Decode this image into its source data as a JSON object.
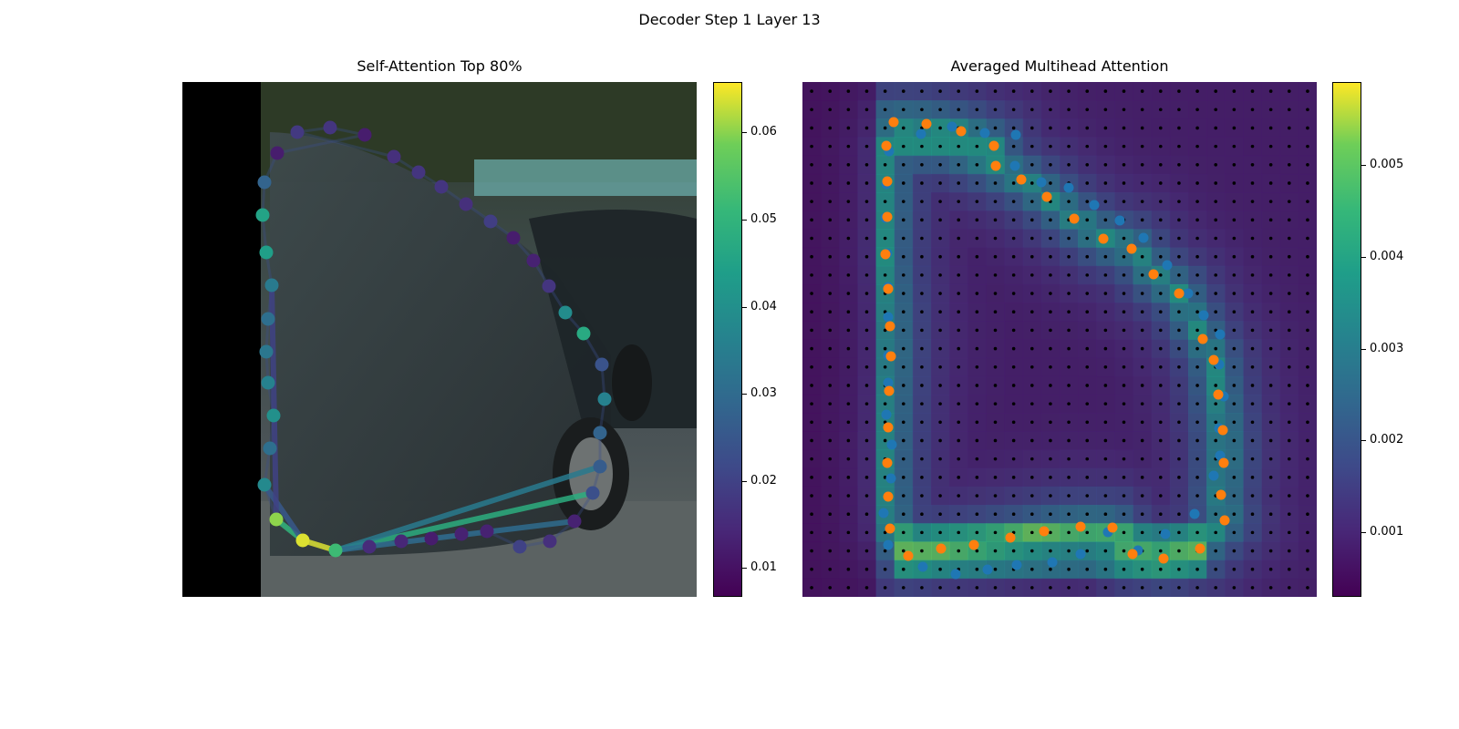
{
  "figure": {
    "suptitle": "Decoder Step 1 Layer 13"
  },
  "chart_data": [
    {
      "type": "scatter",
      "title": "Self-Attention Top 80%",
      "description_kind": "polygon vertices overlaid on camera image, colored by attention weight",
      "colormap": "viridis",
      "colorbar": {
        "min": 0.0068,
        "max": 0.0657,
        "ticks": [
          0.01,
          0.02,
          0.03,
          0.04,
          0.05,
          0.06
        ],
        "tick_labels": [
          "0.01",
          "0.02",
          "0.03",
          "0.04",
          "0.05",
          "0.06"
        ]
      },
      "xlim": [
        0,
        564
      ],
      "ylim": [
        0,
        565
      ],
      "points": [
        {
          "x": 126,
          "y": 55,
          "w": 0.018
        },
        {
          "x": 162,
          "y": 50,
          "w": 0.017
        },
        {
          "x": 200,
          "y": 58,
          "w": 0.012
        },
        {
          "x": 104,
          "y": 78,
          "w": 0.012
        },
        {
          "x": 90,
          "y": 110,
          "w": 0.028
        },
        {
          "x": 88,
          "y": 146,
          "w": 0.045
        },
        {
          "x": 92,
          "y": 187,
          "w": 0.044
        },
        {
          "x": 98,
          "y": 223,
          "w": 0.034
        },
        {
          "x": 94,
          "y": 260,
          "w": 0.031
        },
        {
          "x": 92,
          "y": 296,
          "w": 0.033
        },
        {
          "x": 94,
          "y": 330,
          "w": 0.036
        },
        {
          "x": 100,
          "y": 366,
          "w": 0.04
        },
        {
          "x": 96,
          "y": 402,
          "w": 0.031
        },
        {
          "x": 90,
          "y": 442,
          "w": 0.038
        },
        {
          "x": 103,
          "y": 480,
          "w": 0.06
        },
        {
          "x": 132,
          "y": 503,
          "w": 0.064
        },
        {
          "x": 168,
          "y": 514,
          "w": 0.052
        },
        {
          "x": 205,
          "y": 510,
          "w": 0.015
        },
        {
          "x": 240,
          "y": 504,
          "w": 0.014
        },
        {
          "x": 273,
          "y": 501,
          "w": 0.012
        },
        {
          "x": 306,
          "y": 496,
          "w": 0.013
        },
        {
          "x": 334,
          "y": 493,
          "w": 0.013
        },
        {
          "x": 370,
          "y": 510,
          "w": 0.02
        },
        {
          "x": 403,
          "y": 504,
          "w": 0.016
        },
        {
          "x": 430,
          "y": 482,
          "w": 0.013
        },
        {
          "x": 450,
          "y": 451,
          "w": 0.023
        },
        {
          "x": 458,
          "y": 422,
          "w": 0.026
        },
        {
          "x": 458,
          "y": 385,
          "w": 0.028
        },
        {
          "x": 463,
          "y": 348,
          "w": 0.036
        },
        {
          "x": 460,
          "y": 310,
          "w": 0.024
        },
        {
          "x": 440,
          "y": 276,
          "w": 0.047
        },
        {
          "x": 420,
          "y": 253,
          "w": 0.039
        },
        {
          "x": 402,
          "y": 224,
          "w": 0.017
        },
        {
          "x": 385,
          "y": 196,
          "w": 0.013
        },
        {
          "x": 363,
          "y": 171,
          "w": 0.012
        },
        {
          "x": 338,
          "y": 153,
          "w": 0.019
        },
        {
          "x": 311,
          "y": 134,
          "w": 0.016
        },
        {
          "x": 284,
          "y": 115,
          "w": 0.017
        },
        {
          "x": 259,
          "y": 99,
          "w": 0.017
        },
        {
          "x": 232,
          "y": 82,
          "w": 0.016
        }
      ],
      "highlight_edges": [
        {
          "from": 15,
          "to": 16,
          "w": 0.064
        },
        {
          "from": 15,
          "to": 14,
          "w": 0.05
        },
        {
          "from": 16,
          "to": 25,
          "w": 0.048
        },
        {
          "from": 16,
          "to": 26,
          "w": 0.034
        },
        {
          "from": 16,
          "to": 24,
          "w": 0.03
        },
        {
          "from": 15,
          "to": 13,
          "w": 0.025
        },
        {
          "from": 14,
          "to": 7,
          "w": 0.02
        }
      ]
    },
    {
      "type": "heatmap",
      "title": "Averaged Multihead Attention",
      "colormap": "viridis",
      "colorbar": {
        "min": 0.0003,
        "max": 0.0059,
        "ticks": [
          0.001,
          0.002,
          0.003,
          0.004,
          0.005
        ],
        "tick_labels": [
          "0.001",
          "0.002",
          "0.003",
          "0.004",
          "0.005"
        ]
      },
      "grid": {
        "cols": 28,
        "rows": 28
      },
      "series": [
        {
          "name": "",
          "color": "#1f77b4",
          "points": [
            [
              130,
              57
            ],
            [
              164,
              49
            ],
            [
              200,
              56
            ],
            [
              234,
              58
            ],
            [
              95,
              76
            ],
            [
              92,
              112
            ],
            [
              91,
              149
            ],
            [
              93,
              188
            ],
            [
              94,
              225
            ],
            [
              94,
              258
            ],
            [
              94,
              300
            ],
            [
              94,
              330
            ],
            [
              92,
              365
            ],
            [
              98,
              398
            ],
            [
              97,
              435
            ],
            [
              89,
              473
            ],
            [
              94,
              508
            ],
            [
              132,
              532
            ],
            [
              168,
              540
            ],
            [
              203,
              535
            ],
            [
              235,
              530
            ],
            [
              274,
              527
            ],
            [
              305,
              518
            ],
            [
              335,
              494
            ],
            [
              368,
              514
            ],
            [
              398,
              496
            ],
            [
              430,
              474
            ],
            [
              451,
              432
            ],
            [
              458,
              410
            ],
            [
              457,
              380
            ],
            [
              462,
              345
            ],
            [
              457,
              310
            ],
            [
              458,
              277
            ],
            [
              440,
              256
            ],
            [
              423,
              232
            ],
            [
              400,
              201
            ],
            [
              374,
              171
            ],
            [
              348,
              152
            ],
            [
              320,
              135
            ],
            [
              292,
              116
            ],
            [
              262,
              110
            ],
            [
              233,
              92
            ]
          ]
        },
        {
          "name": "",
          "color": "#ff7f0e",
          "points": [
            [
              100,
              44
            ],
            [
              136,
              46
            ],
            [
              174,
              54
            ],
            [
              210,
              70
            ],
            [
              92,
              70
            ],
            [
              93,
              109
            ],
            [
              93,
              148
            ],
            [
              91,
              189
            ],
            [
              94,
              227
            ],
            [
              96,
              268
            ],
            [
              97,
              301
            ],
            [
              95,
              339
            ],
            [
              94,
              379
            ],
            [
              93,
              418
            ],
            [
              94,
              455
            ],
            [
              96,
              490
            ],
            [
              116,
              520
            ],
            [
              152,
              512
            ],
            [
              188,
              508
            ],
            [
              228,
              500
            ],
            [
              265,
              493
            ],
            [
              305,
              488
            ],
            [
              340,
              489
            ],
            [
              362,
              518
            ],
            [
              396,
              523
            ],
            [
              436,
              512
            ],
            [
              463,
              481
            ],
            [
              459,
              453
            ],
            [
              462,
              418
            ],
            [
              461,
              382
            ],
            [
              456,
              343
            ],
            [
              451,
              305
            ],
            [
              439,
              282
            ],
            [
              413,
              232
            ],
            [
              385,
              211
            ],
            [
              361,
              183
            ],
            [
              330,
              172
            ],
            [
              298,
              150
            ],
            [
              268,
              126
            ],
            [
              240,
              107
            ],
            [
              212,
              92
            ]
          ]
        }
      ]
    }
  ]
}
